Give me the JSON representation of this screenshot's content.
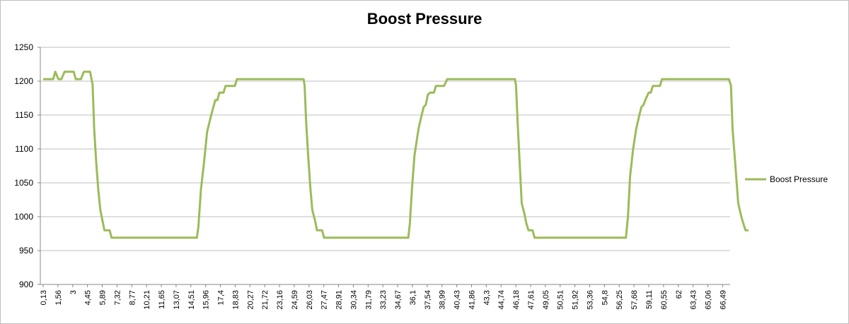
{
  "chart_data": {
    "type": "line",
    "title": "Boost Pressure",
    "ylim": [
      900,
      1250
    ],
    "ystep": 50,
    "grid": "horizontal",
    "legend_position": "right",
    "x_tick_labels": [
      "0,13",
      "1,56",
      "3",
      "4,45",
      "5,89",
      "7,32",
      "8,77",
      "10,21",
      "11,65",
      "13,07",
      "14,51",
      "15,96",
      "17,4",
      "18,83",
      "20,27",
      "21,72",
      "23,16",
      "24,59",
      "26,03",
      "27,47",
      "28,91",
      "30,34",
      "31,79",
      "33,23",
      "34,67",
      "36,1",
      "37,54",
      "38,99",
      "40,43",
      "41,86",
      "43,3",
      "44,74",
      "46,18",
      "47,61",
      "49,05",
      "50,51",
      "51,92",
      "53,36",
      "54,8",
      "56,25",
      "57,68",
      "59,11",
      "60,55",
      "62",
      "63,43",
      "65,06",
      "66,49"
    ],
    "series": [
      {
        "name": "Boost Pressure",
        "color": "#9bbb59",
        "points": [
          [
            0.13,
            1203
          ],
          [
            1.1,
            1203
          ],
          [
            1.3,
            1214
          ],
          [
            1.6,
            1203
          ],
          [
            1.9,
            1203
          ],
          [
            2.2,
            1214
          ],
          [
            3.1,
            1214
          ],
          [
            3.3,
            1203
          ],
          [
            3.8,
            1203
          ],
          [
            4.1,
            1214
          ],
          [
            4.7,
            1214
          ],
          [
            4.95,
            1195
          ],
          [
            5.1,
            1130
          ],
          [
            5.3,
            1080
          ],
          [
            5.5,
            1040
          ],
          [
            5.7,
            1010
          ],
          [
            5.9,
            995
          ],
          [
            6.1,
            980
          ],
          [
            6.6,
            980
          ],
          [
            6.8,
            969
          ],
          [
            15.1,
            969
          ],
          [
            15.25,
            985
          ],
          [
            15.5,
            1040
          ],
          [
            15.8,
            1080
          ],
          [
            16.1,
            1125
          ],
          [
            16.5,
            1150
          ],
          [
            16.9,
            1172
          ],
          [
            17.1,
            1172
          ],
          [
            17.3,
            1183
          ],
          [
            17.7,
            1183
          ],
          [
            17.9,
            1193
          ],
          [
            18.8,
            1193
          ],
          [
            19.0,
            1203
          ],
          [
            25.5,
            1203
          ],
          [
            25.6,
            1193
          ],
          [
            25.75,
            1140
          ],
          [
            25.95,
            1090
          ],
          [
            26.15,
            1045
          ],
          [
            26.35,
            1010
          ],
          [
            26.6,
            995
          ],
          [
            26.8,
            980
          ],
          [
            27.3,
            980
          ],
          [
            27.5,
            969
          ],
          [
            35.7,
            969
          ],
          [
            35.85,
            990
          ],
          [
            36.05,
            1040
          ],
          [
            36.3,
            1090
          ],
          [
            36.5,
            1110
          ],
          [
            36.7,
            1130
          ],
          [
            37.0,
            1150
          ],
          [
            37.2,
            1162
          ],
          [
            37.4,
            1165
          ],
          [
            37.6,
            1180
          ],
          [
            37.8,
            1183
          ],
          [
            38.2,
            1183
          ],
          [
            38.4,
            1193
          ],
          [
            39.2,
            1193
          ],
          [
            39.5,
            1203
          ],
          [
            46.1,
            1203
          ],
          [
            46.2,
            1193
          ],
          [
            46.35,
            1140
          ],
          [
            46.55,
            1080
          ],
          [
            46.75,
            1020
          ],
          [
            47.0,
            1005
          ],
          [
            47.2,
            990
          ],
          [
            47.4,
            980
          ],
          [
            47.8,
            980
          ],
          [
            48.0,
            969
          ],
          [
            56.9,
            969
          ],
          [
            57.1,
            1000
          ],
          [
            57.3,
            1060
          ],
          [
            57.6,
            1100
          ],
          [
            57.9,
            1130
          ],
          [
            58.2,
            1150
          ],
          [
            58.4,
            1162
          ],
          [
            58.6,
            1165
          ],
          [
            58.8,
            1173
          ],
          [
            59.1,
            1183
          ],
          [
            59.3,
            1183
          ],
          [
            59.5,
            1193
          ],
          [
            60.2,
            1193
          ],
          [
            60.4,
            1203
          ],
          [
            67.1,
            1203
          ],
          [
            67.3,
            1193
          ],
          [
            67.45,
            1130
          ],
          [
            67.7,
            1080
          ],
          [
            68.0,
            1020
          ],
          [
            68.3,
            1000
          ],
          [
            68.5,
            990
          ],
          [
            68.7,
            980
          ],
          [
            69.0,
            980
          ]
        ]
      }
    ]
  }
}
